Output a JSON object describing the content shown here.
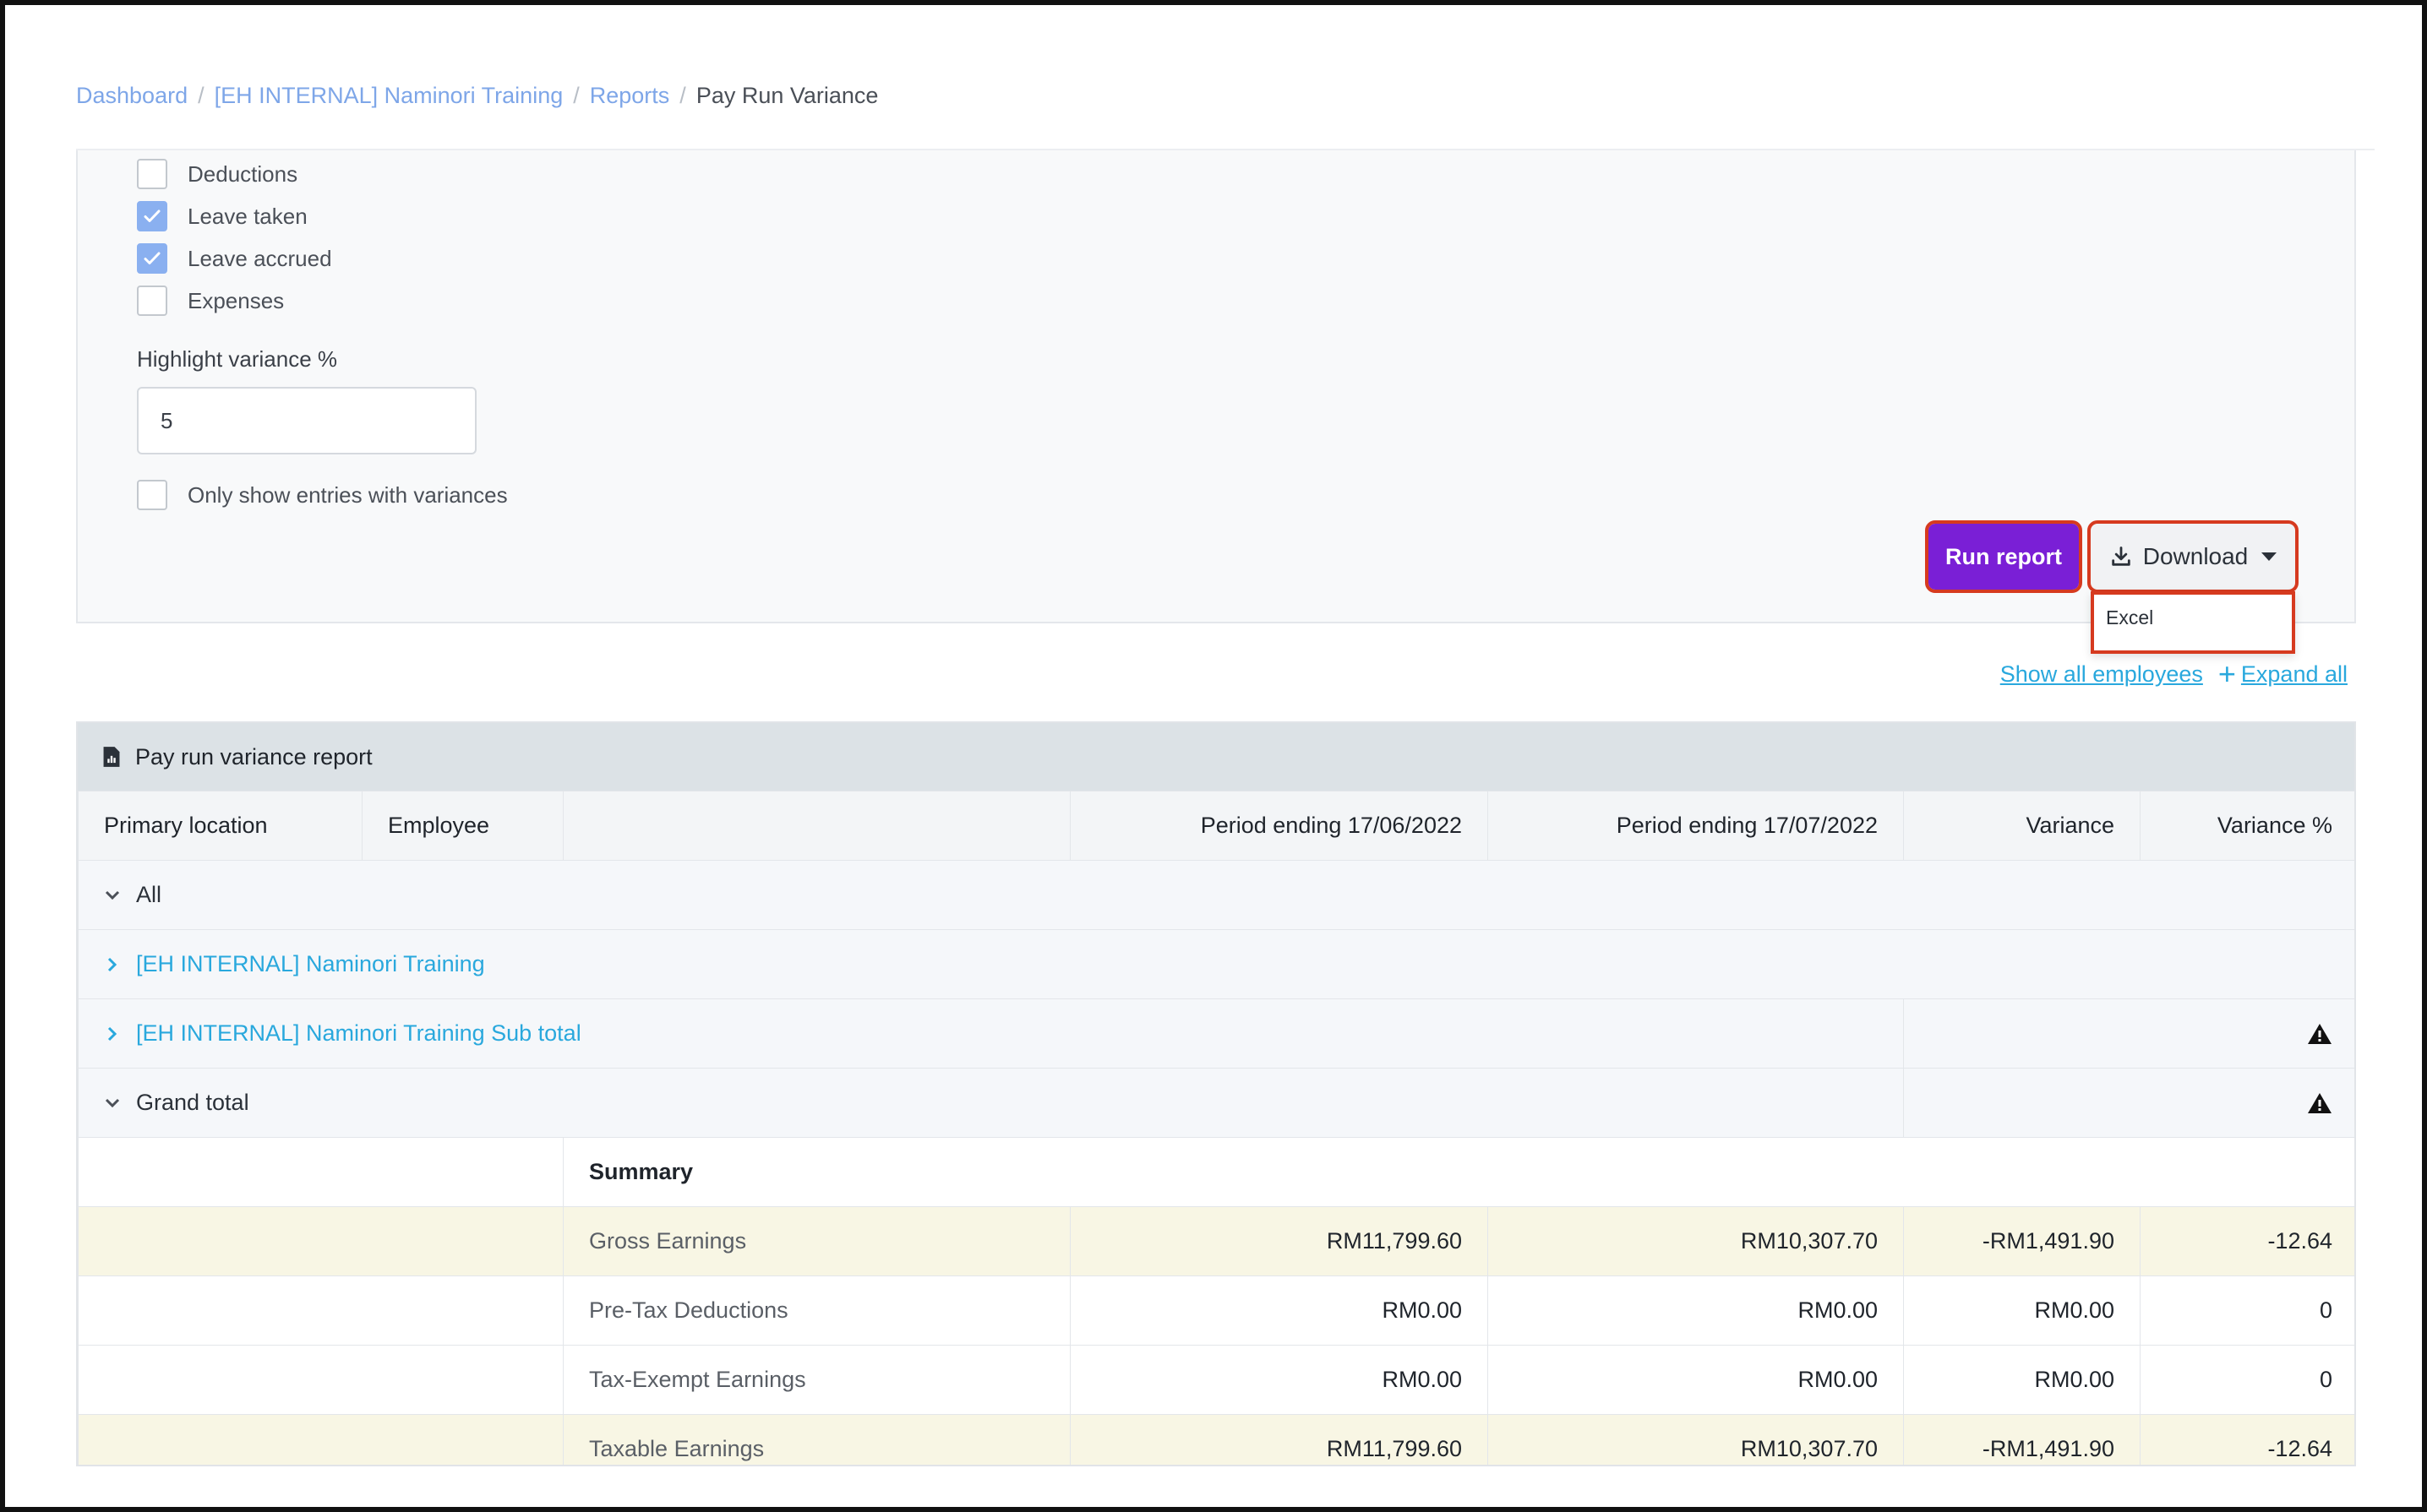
{
  "breadcrumb": {
    "items": [
      "Dashboard",
      "[EH INTERNAL] Naminori Training",
      "Reports"
    ],
    "current": "Pay Run Variance"
  },
  "filters": {
    "checkboxes": [
      {
        "label": "Deductions",
        "checked": false
      },
      {
        "label": "Leave taken",
        "checked": true
      },
      {
        "label": "Leave accrued",
        "checked": true
      },
      {
        "label": "Expenses",
        "checked": false
      }
    ],
    "highlight_label": "Highlight variance %",
    "highlight_value": "5",
    "only_variances_label": "Only show entries with variances",
    "only_variances_checked": false
  },
  "actions": {
    "run_label": "Run report",
    "download_label": "Download",
    "download_menu": [
      "Excel"
    ]
  },
  "links": {
    "show_all": "Show all employees",
    "expand_all": "Expand all"
  },
  "report": {
    "title": "Pay run variance report",
    "columns": [
      "Primary location",
      "Employee",
      "",
      "Period ending 17/06/2022",
      "Period ending 17/07/2022",
      "Variance",
      "Variance %"
    ],
    "groups": [
      {
        "label": "All",
        "expanded": true,
        "link": false,
        "warning": false
      },
      {
        "label": "[EH INTERNAL] Naminori Training",
        "expanded": false,
        "link": true,
        "warning": false
      },
      {
        "label": "[EH INTERNAL] Naminori Training Sub total",
        "expanded": false,
        "link": true,
        "warning": true
      },
      {
        "label": "Grand total",
        "expanded": true,
        "link": false,
        "warning": true
      }
    ],
    "summary_label": "Summary",
    "rows": [
      {
        "label": "Gross Earnings",
        "p1": "RM11,799.60",
        "p2": "RM10,307.70",
        "variance": "-RM1,491.90",
        "pct": "-12.64",
        "highlight": true
      },
      {
        "label": "Pre-Tax Deductions",
        "p1": "RM0.00",
        "p2": "RM0.00",
        "variance": "RM0.00",
        "pct": "0",
        "highlight": false
      },
      {
        "label": "Tax-Exempt Earnings",
        "p1": "RM0.00",
        "p2": "RM0.00",
        "variance": "RM0.00",
        "pct": "0",
        "highlight": false
      },
      {
        "label": "Taxable Earnings",
        "p1": "RM11,799.60",
        "p2": "RM10,307.70",
        "variance": "-RM1,491.90",
        "pct": "-12.64",
        "highlight": true
      }
    ]
  },
  "colors": {
    "primary": "#7a1fd6",
    "link": "#29a8dd",
    "highlight_row": "#f8f6e4",
    "annotation": "#d63a1f"
  }
}
